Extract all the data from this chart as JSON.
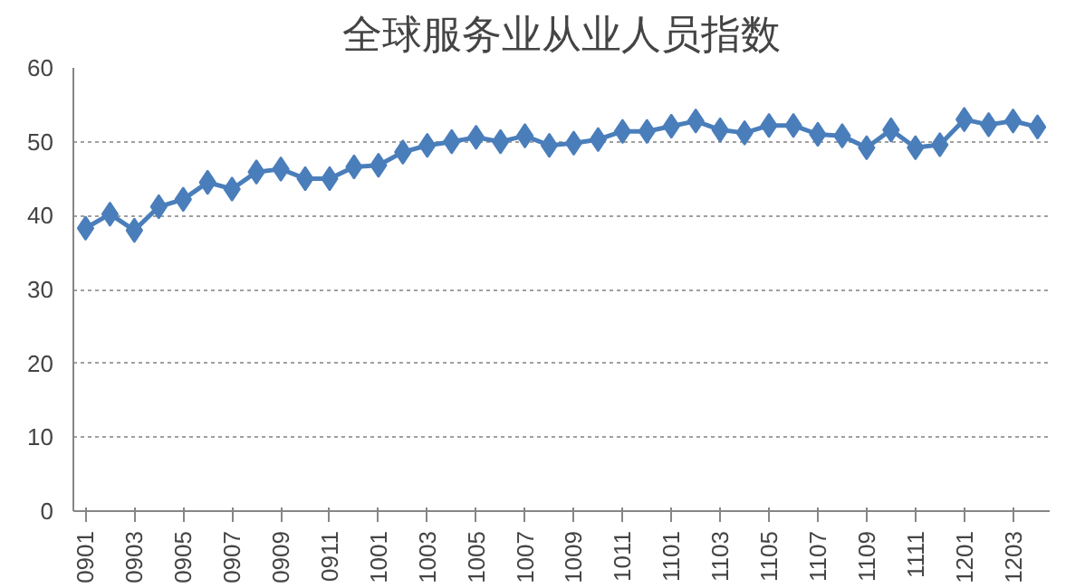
{
  "chart_data": {
    "type": "line",
    "title": "全球服务业从业人员指数",
    "categories": [
      "0901",
      null,
      "0903",
      null,
      "0905",
      null,
      "0907",
      null,
      "0909",
      null,
      "0911",
      null,
      "1001",
      null,
      "1003",
      null,
      "1005",
      null,
      "1007",
      null,
      "1009",
      null,
      "1011",
      null,
      "1101",
      null,
      "1103",
      null,
      "1105",
      null,
      "1107",
      null,
      "1109",
      null,
      "1111",
      null,
      "1201",
      null,
      "1203",
      null
    ],
    "series": [
      {
        "color": "#4a7ebb",
        "values": [
          38.3,
          40.2,
          38.0,
          41.2,
          42.2,
          44.5,
          43.6,
          45.9,
          46.3,
          45.0,
          45.0,
          46.6,
          46.8,
          48.6,
          49.5,
          50.0,
          50.6,
          50.0,
          50.8,
          49.5,
          49.8,
          50.3,
          51.4,
          51.4,
          52.1,
          52.8,
          51.6,
          51.2,
          52.2,
          52.2,
          51.0,
          50.8,
          49.2,
          51.6,
          49.2,
          49.6,
          53.0,
          52.3,
          52.8,
          52.0
        ]
      }
    ],
    "ylim": [
      0,
      60
    ],
    "yticks": [
      0,
      10,
      20,
      30,
      40,
      50,
      60
    ],
    "grid": "y",
    "marker": "diamond",
    "line_style": "solid"
  }
}
